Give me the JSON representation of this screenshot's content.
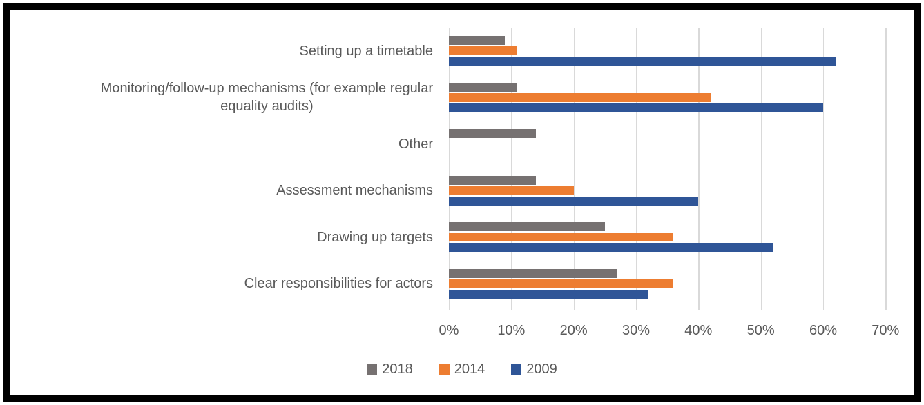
{
  "chart_data": {
    "type": "bar",
    "orientation": "horizontal",
    "title": "",
    "xlabel": "",
    "ylabel": "",
    "xlim": [
      0,
      70
    ],
    "x_ticks": [
      "0%",
      "10%",
      "20%",
      "30%",
      "40%",
      "50%",
      "60%",
      "70%"
    ],
    "grid": true,
    "legend_position": "bottom",
    "categories": [
      "Setting up a timetable",
      "Monitoring/follow-up mechanisms (for example regular\nequality audits)",
      "Other",
      "Assessment mechanisms",
      "Drawing up targets",
      "Clear responsibilities for actors"
    ],
    "series": [
      {
        "name": "2018",
        "color": "#767171",
        "values": [
          9,
          11,
          14,
          14,
          25,
          27
        ]
      },
      {
        "name": "2014",
        "color": "#ED7D31",
        "values": [
          11,
          42,
          0,
          20,
          36,
          36
        ]
      },
      {
        "name": "2009",
        "color": "#2F5597",
        "values": [
          62,
          60,
          0,
          40,
          52,
          32
        ]
      }
    ],
    "colors": {
      "background": "#FFFFFF",
      "frame_border": "#000000",
      "gridline": "#D9D9D9",
      "axis_text": "#595959"
    }
  }
}
